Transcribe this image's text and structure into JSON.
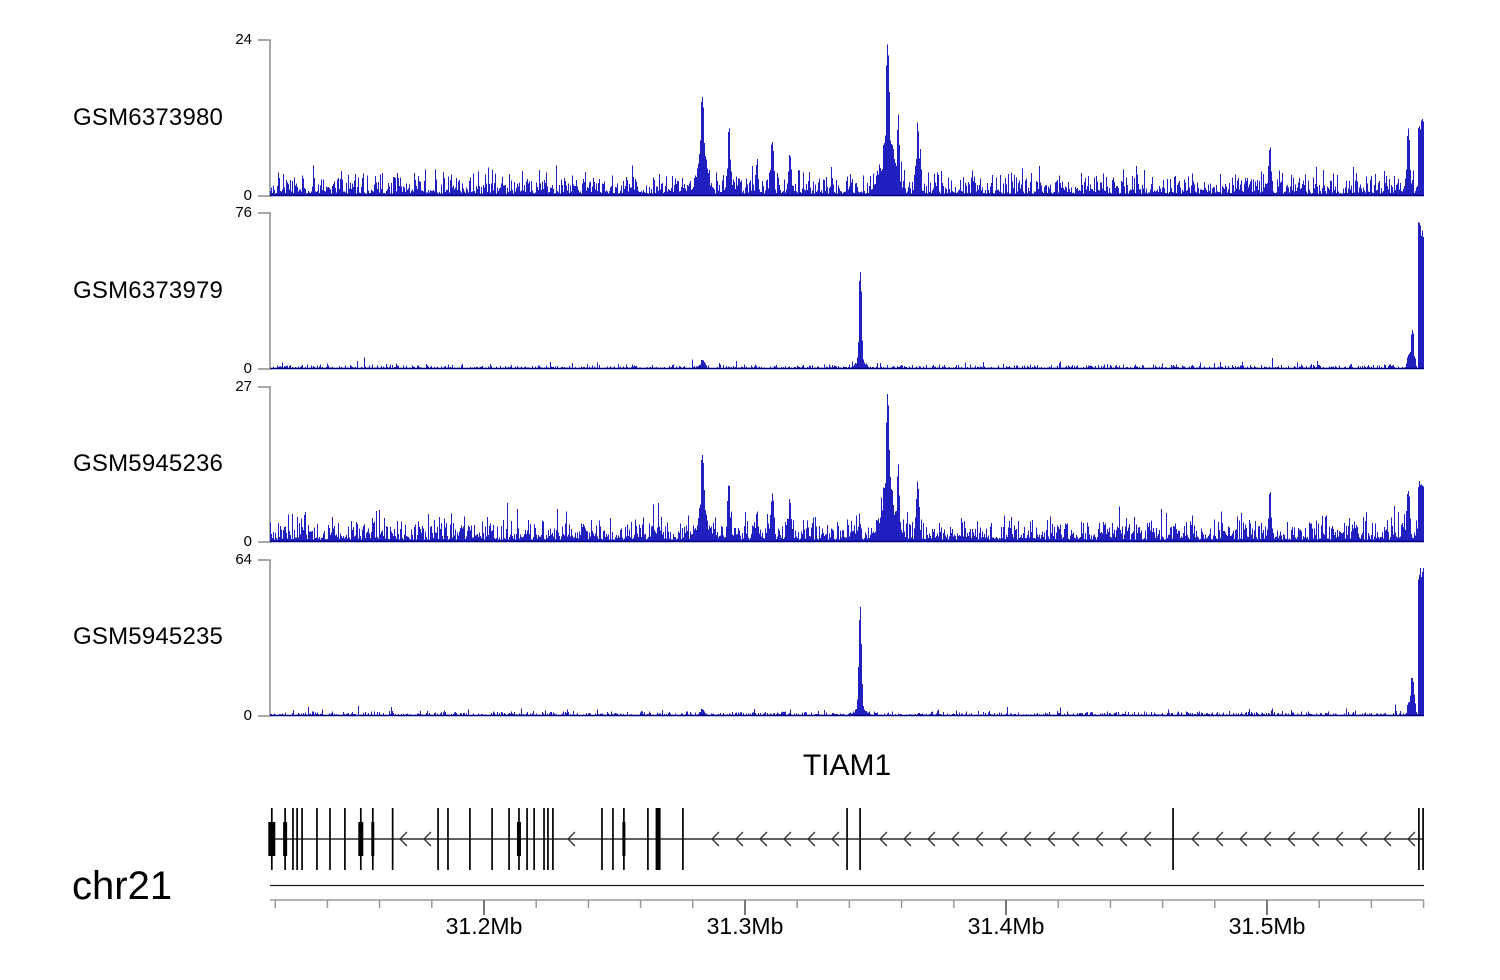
{
  "figure": {
    "background": "#ffffff",
    "signal_color": "#2020c0",
    "signal_base_color": "#000080",
    "axis_color": "#8c8c8c",
    "ruler_color": "#999999",
    "major_tick_color": "#777777",
    "gene_color": "#000000",
    "chromosome_label": "chr21"
  },
  "chart_data": {
    "type": "area",
    "description": "Genome browser read-coverage tracks over the TIAM1 locus on chr21",
    "x_unit": "Mb",
    "x_domain_mb": [
      31.118,
      31.5605
    ],
    "x_tick_start_mb": 31.12,
    "x_tick_step_mb": 0.02,
    "x_major_ticks": [
      {
        "mb": 31.2,
        "label": "31.2Mb"
      },
      {
        "mb": 31.3,
        "label": "31.3Mb"
      },
      {
        "mb": 31.4,
        "label": "31.4Mb"
      },
      {
        "mb": 31.5,
        "label": "31.5Mb"
      }
    ],
    "tracks": [
      {
        "name": "GSM6373980",
        "ymax": 24,
        "ymin_label": "0",
        "style": "busy",
        "seed": 101,
        "peaks": [
          {
            "mb": 31.2835,
            "value": 17,
            "w": 3
          },
          {
            "mb": 31.2835,
            "value": 8,
            "w": 8
          },
          {
            "mb": 31.2937,
            "value": 11,
            "w": 2.5
          },
          {
            "mb": 31.3045,
            "value": 6,
            "w": 2
          },
          {
            "mb": 31.3103,
            "value": 9,
            "w": 2.5
          },
          {
            "mb": 31.317,
            "value": 7,
            "w": 2.5
          },
          {
            "mb": 31.3545,
            "value": 24,
            "w": 3
          },
          {
            "mb": 31.3545,
            "value": 10,
            "w": 11
          },
          {
            "mb": 31.3585,
            "value": 13,
            "w": 2
          },
          {
            "mb": 31.366,
            "value": 12,
            "w": 2.5
          },
          {
            "mb": 31.501,
            "value": 8,
            "w": 2.5
          },
          {
            "mb": 31.554,
            "value": 11,
            "w": 2.5
          },
          {
            "mb": 31.559,
            "value": 12,
            "w": 3.5,
            "type": "block"
          }
        ]
      },
      {
        "name": "GSM6373979",
        "ymax": 76,
        "ymin_label": "0",
        "style": "quiet",
        "seed": 202,
        "peaks": [
          {
            "mb": 31.2835,
            "value": 5,
            "w": 4
          },
          {
            "mb": 31.344,
            "value": 51,
            "w": 2.2
          },
          {
            "mb": 31.344,
            "value": 5,
            "w": 8
          },
          {
            "mb": 31.554,
            "value": 7,
            "w": 2
          },
          {
            "mb": 31.5555,
            "value": 20,
            "w": 3
          },
          {
            "mb": 31.559,
            "value": 73,
            "w": 3.5,
            "type": "block"
          }
        ]
      },
      {
        "name": "GSM5945236",
        "ymax": 27,
        "ymin_label": "0",
        "style": "busy",
        "seed": 303,
        "peaks": [
          {
            "mb": 31.2835,
            "value": 16,
            "w": 3
          },
          {
            "mb": 31.2835,
            "value": 7,
            "w": 8
          },
          {
            "mb": 31.2937,
            "value": 11,
            "w": 2.5
          },
          {
            "mb": 31.3045,
            "value": 6,
            "w": 2
          },
          {
            "mb": 31.3103,
            "value": 9,
            "w": 2.5
          },
          {
            "mb": 31.317,
            "value": 8,
            "w": 2.5
          },
          {
            "mb": 31.3545,
            "value": 27,
            "w": 3
          },
          {
            "mb": 31.3545,
            "value": 11,
            "w": 11
          },
          {
            "mb": 31.3585,
            "value": 14,
            "w": 2
          },
          {
            "mb": 31.366,
            "value": 11,
            "w": 2.5
          },
          {
            "mb": 31.501,
            "value": 9,
            "w": 2.5
          },
          {
            "mb": 31.554,
            "value": 10,
            "w": 2.5
          },
          {
            "mb": 31.559,
            "value": 11,
            "w": 3.5,
            "type": "block"
          }
        ]
      },
      {
        "name": "GSM5945235",
        "ymax": 64,
        "ymin_label": "0",
        "style": "quiet",
        "seed": 404,
        "peaks": [
          {
            "mb": 31.2835,
            "value": 3,
            "w": 4
          },
          {
            "mb": 31.344,
            "value": 49,
            "w": 2.2
          },
          {
            "mb": 31.344,
            "value": 4,
            "w": 8
          },
          {
            "mb": 31.554,
            "value": 6,
            "w": 2
          },
          {
            "mb": 31.5555,
            "value": 17,
            "w": 3
          },
          {
            "mb": 31.559,
            "value": 62,
            "w": 3.5,
            "type": "block"
          }
        ]
      }
    ],
    "gene": {
      "name": "TIAM1",
      "strand": "-",
      "exons": [
        {
          "mb": 31.1187,
          "style": "thick",
          "w": 7
        },
        {
          "mb": 31.1238,
          "style": "thick",
          "w": 4
        },
        {
          "mb": 31.1268,
          "style": "thin"
        },
        {
          "mb": 31.1284,
          "style": "thin"
        },
        {
          "mb": 31.1303,
          "style": "thin"
        },
        {
          "mb": 31.136,
          "style": "thin"
        },
        {
          "mb": 31.141,
          "style": "thin"
        },
        {
          "mb": 31.1467,
          "style": "thin"
        },
        {
          "mb": 31.1528,
          "style": "thick",
          "w": 5
        },
        {
          "mb": 31.1574,
          "style": "thick",
          "w": 3
        },
        {
          "mb": 31.165,
          "style": "thin"
        },
        {
          "mb": 31.1824,
          "style": "thin"
        },
        {
          "mb": 31.1862,
          "style": "thin"
        },
        {
          "mb": 31.1946,
          "style": "thin"
        },
        {
          "mb": 31.2031,
          "style": "thin"
        },
        {
          "mb": 31.2096,
          "style": "thin"
        },
        {
          "mb": 31.2134,
          "style": "thick",
          "w": 4
        },
        {
          "mb": 31.2165,
          "style": "thin"
        },
        {
          "mb": 31.2192,
          "style": "thin"
        },
        {
          "mb": 31.223,
          "style": "thin"
        },
        {
          "mb": 31.2245,
          "style": "thin"
        },
        {
          "mb": 31.2264,
          "style": "thin"
        },
        {
          "mb": 31.2452,
          "style": "thin"
        },
        {
          "mb": 31.2494,
          "style": "thin"
        },
        {
          "mb": 31.2536,
          "style": "thick",
          "w": 3
        },
        {
          "mb": 31.2628,
          "style": "thin"
        },
        {
          "mb": 31.2667,
          "style": "tall-thick",
          "w": 5
        },
        {
          "mb": 31.2762,
          "style": "thin"
        },
        {
          "mb": 31.3391,
          "style": "thin"
        },
        {
          "mb": 31.3441,
          "style": "thin"
        },
        {
          "mb": 31.464,
          "style": "thin"
        },
        {
          "mb": 31.5582,
          "style": "thin"
        },
        {
          "mb": 31.5598,
          "style": "thin"
        }
      ]
    }
  }
}
